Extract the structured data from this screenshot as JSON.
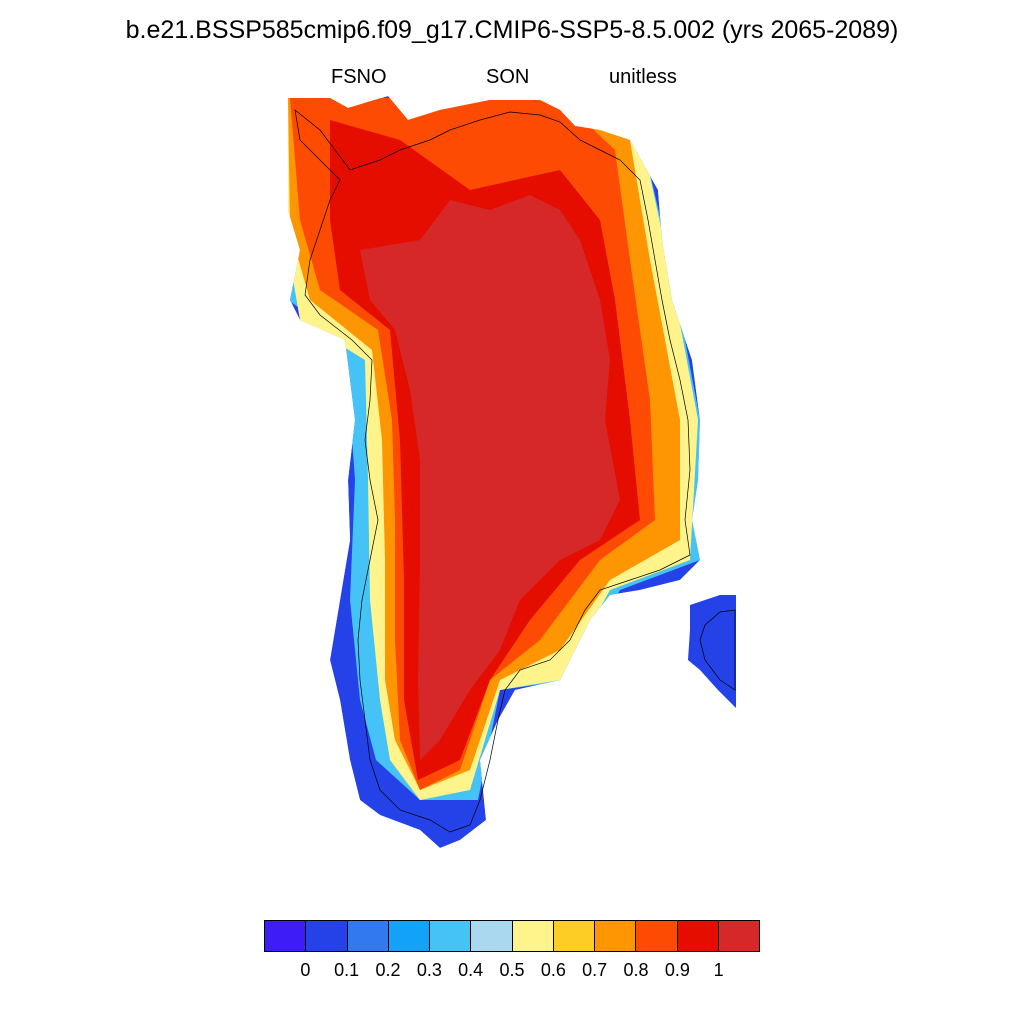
{
  "title": "b.e21.BSSP585cmip6.f09_g17.CMIP6-SSP5-8.5.002 (yrs 2065-2089)",
  "subtitle_left": "FSNO",
  "subtitle_center": "SON",
  "subtitle_right": "unitless",
  "colorbar": {
    "colors": [
      "#3d1cf5",
      "#2442e8",
      "#3278ee",
      "#12a2f7",
      "#45c2f6",
      "#a9d8ef",
      "#fff48c",
      "#fecd25",
      "#fe9603",
      "#fe4b03",
      "#e50c00",
      "#d62828"
    ],
    "tick_labels": [
      "0",
      "0.1",
      "0.2",
      "0.3",
      "0.4",
      "0.5",
      "0.6",
      "0.7",
      "0.8",
      "0.9",
      "1"
    ]
  }
}
